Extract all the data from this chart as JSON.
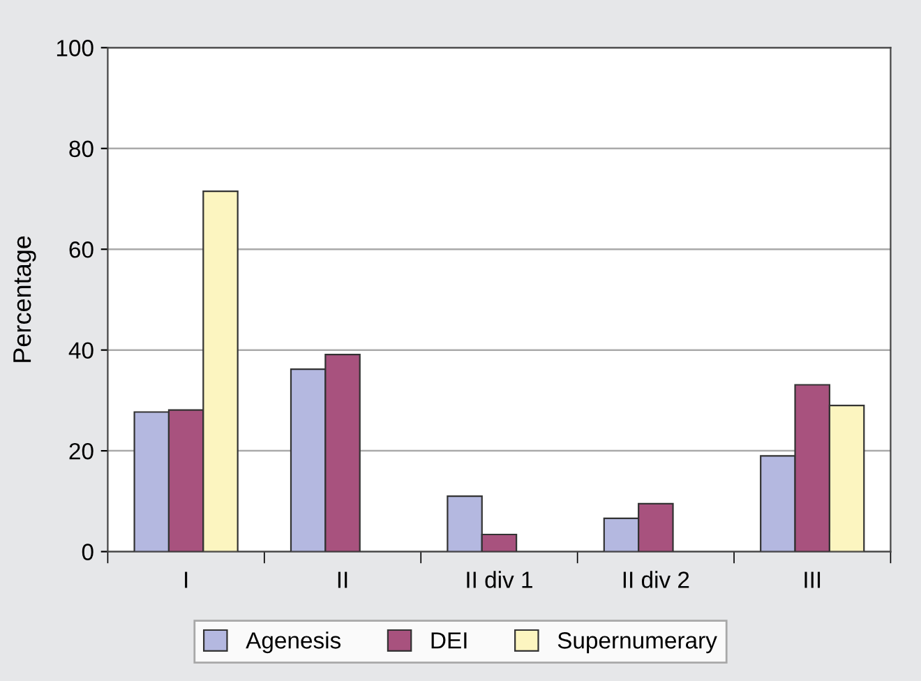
{
  "chart_data": {
    "type": "bar",
    "ylabel": "Percentage",
    "categories": [
      "I",
      "II",
      "II div 1",
      "II div 2",
      "III"
    ],
    "series": [
      {
        "name": "Agenesis",
        "color": "#b4b8e0",
        "values": [
          27.7,
          36.2,
          11.0,
          6.6,
          19.0
        ]
      },
      {
        "name": "DEI",
        "color": "#a8527e",
        "values": [
          28.1,
          39.1,
          3.4,
          9.5,
          33.1
        ]
      },
      {
        "name": "Supernumerary",
        "color": "#fcf5c0",
        "values": [
          71.5,
          null,
          null,
          null,
          29.0
        ]
      }
    ],
    "ylim": [
      0,
      100
    ],
    "yticks": [
      0,
      20,
      40,
      60,
      80,
      100
    ],
    "grid": "y",
    "legend": "bottom"
  }
}
